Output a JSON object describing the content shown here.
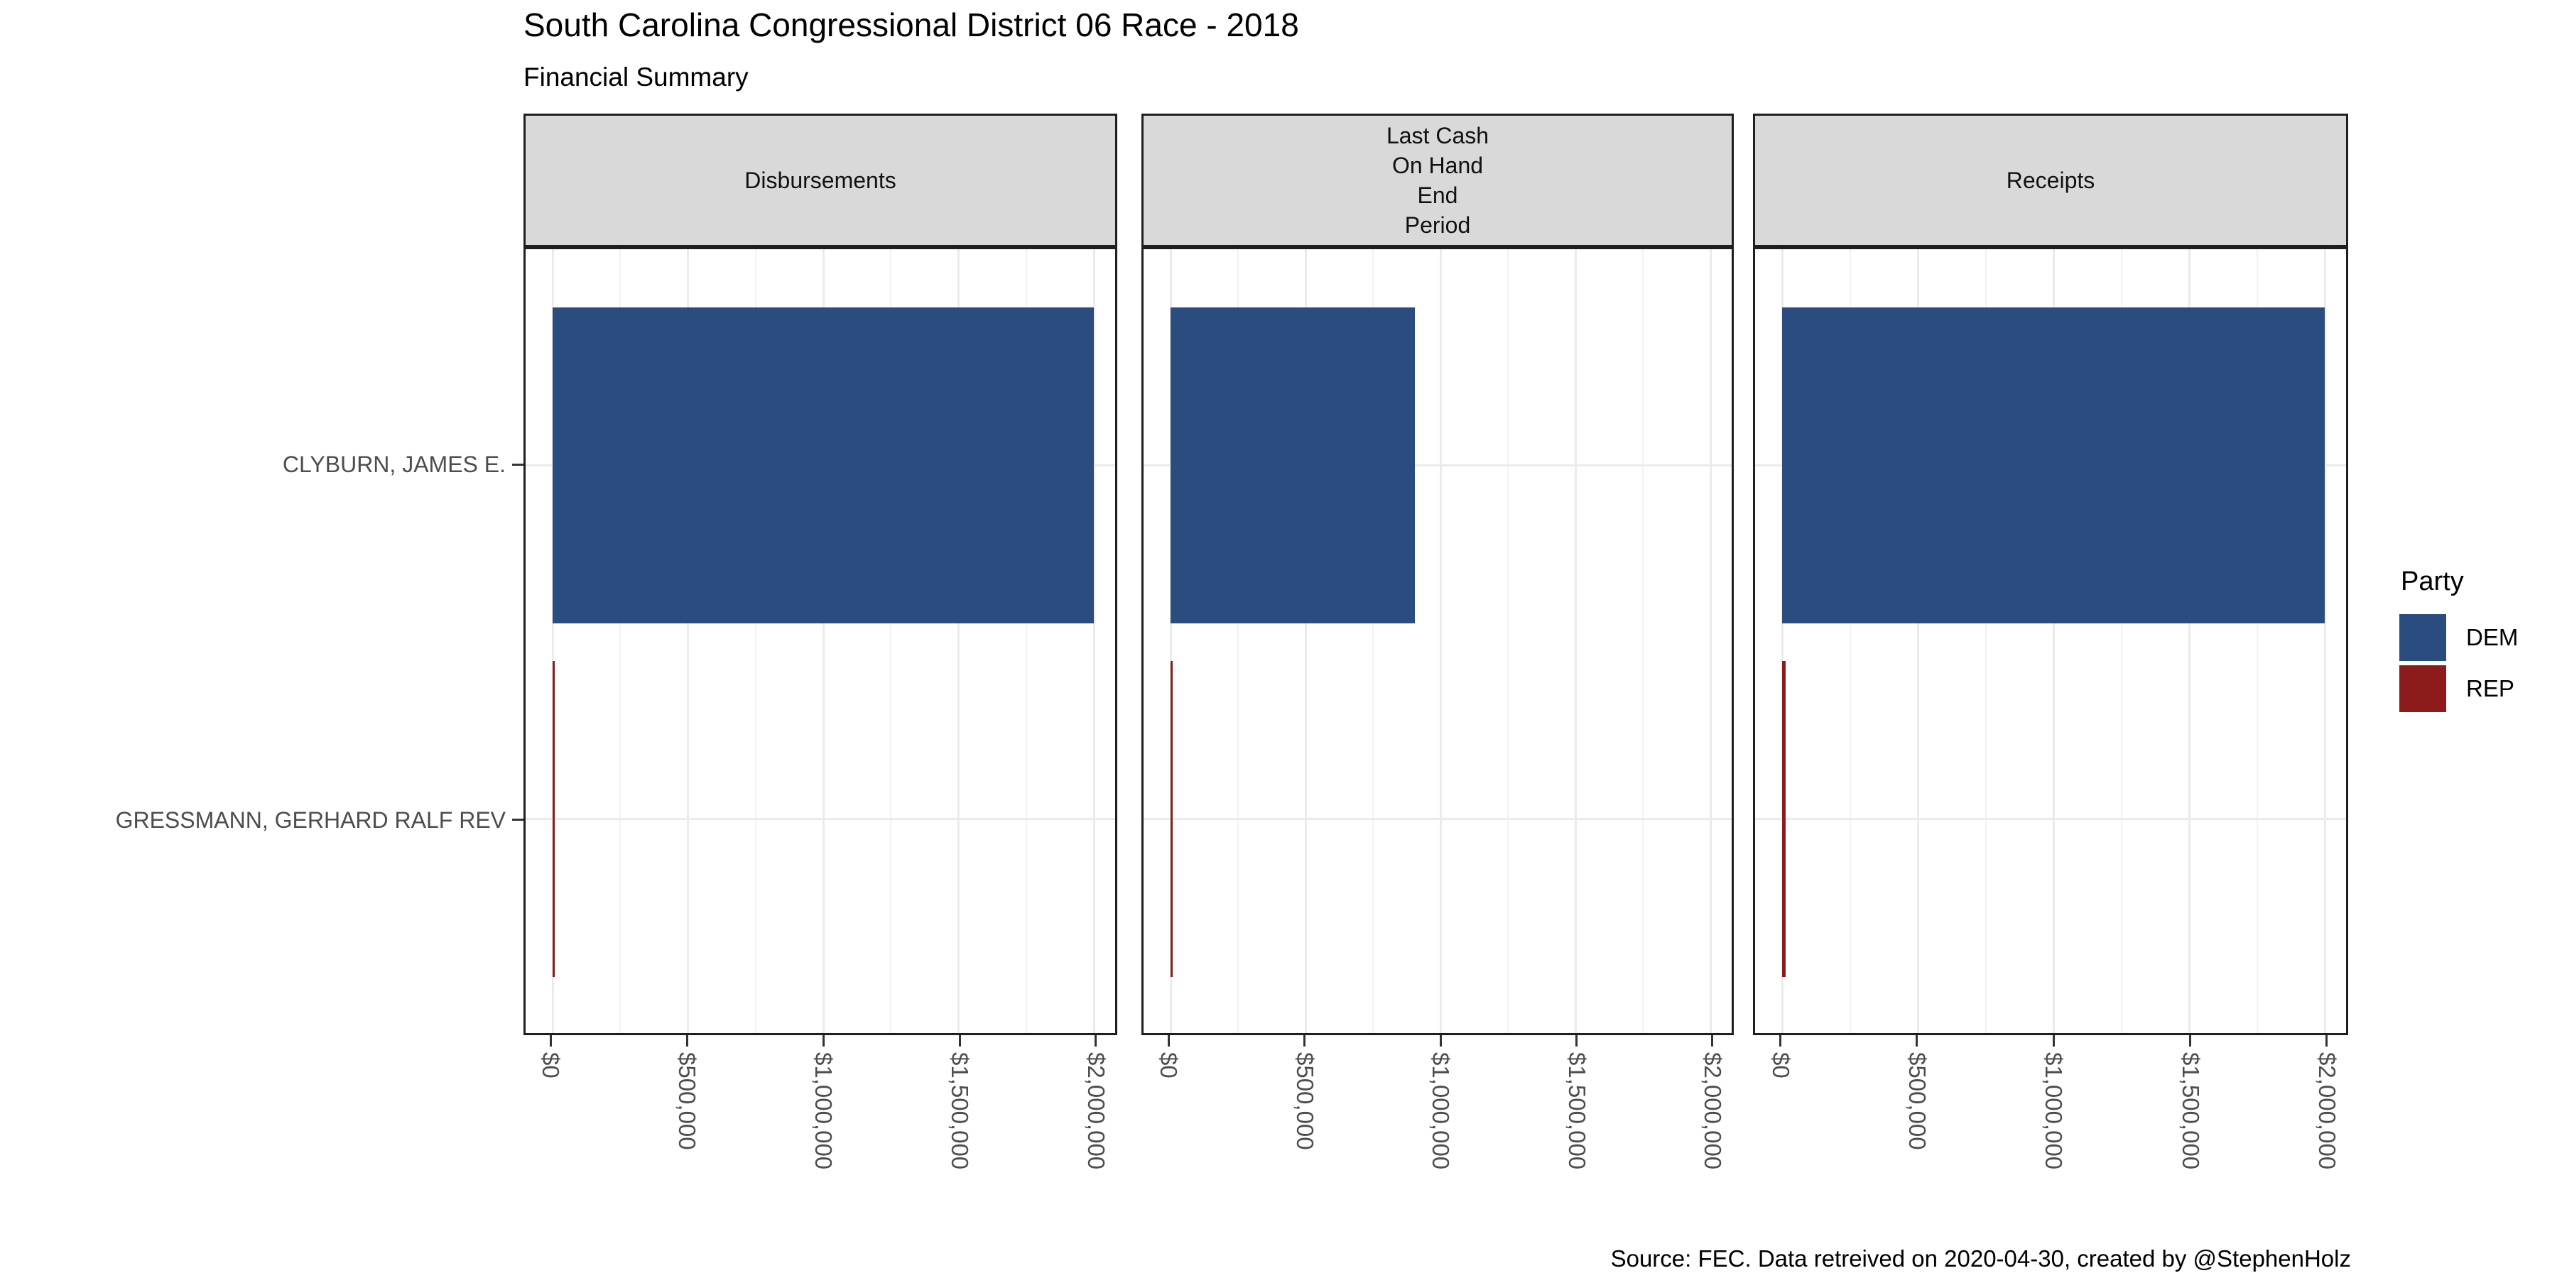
{
  "chart": {
    "title": "South Carolina Congressional District 06 Race - 2018",
    "subtitle": "Financial Summary",
    "caption": "Source: FEC. Data retreived on 2020-04-30, created by @StephenHolz"
  },
  "legend": {
    "title": "Party",
    "items": [
      {
        "label": "DEM",
        "color": "#2B4C7E"
      },
      {
        "label": "REP",
        "color": "#8E1B1B"
      }
    ]
  },
  "chart_data": {
    "type": "bar",
    "orientation": "horizontal",
    "title": "South Carolina Congressional District 06 Race - 2018",
    "subtitle": "Financial Summary",
    "categories": [
      "CLYBURN, JAMES E.",
      "GRESSMANN, GERHARD RALF REV"
    ],
    "category_parties": [
      "DEM",
      "REP"
    ],
    "facets": [
      {
        "label_lines": [
          "Disbursements"
        ],
        "values": [
          2000000,
          5000
        ]
      },
      {
        "label_lines": [
          "Last Cash",
          "On Hand",
          "End",
          "Period"
        ],
        "values": [
          905000,
          4000
        ]
      },
      {
        "label_lines": [
          "Receipts"
        ],
        "values": [
          2000000,
          12000
        ]
      }
    ],
    "x_ticks": {
      "labels": [
        "$0",
        "$500,000",
        "$1,000,000",
        "$1,500,000",
        "$2,000,000"
      ],
      "values": [
        0,
        500000,
        1000000,
        1500000,
        2000000
      ]
    },
    "x_minor_values": [
      250000,
      750000,
      1250000,
      1750000
    ],
    "xlim": [
      0,
      2080000
    ],
    "grid": true,
    "legend_position": "right",
    "party_colors": {
      "DEM": "#2B4C7E",
      "REP": "#8E1B1B"
    }
  },
  "style_colors": {
    "strip_bg": "#D9D9D9",
    "panel_border": "#1f1f1f",
    "grid_major": "#EBEBEB",
    "grid_minor": "#F2F2F2",
    "axis_text": "#4D4D4D",
    "tick": "#333333"
  }
}
